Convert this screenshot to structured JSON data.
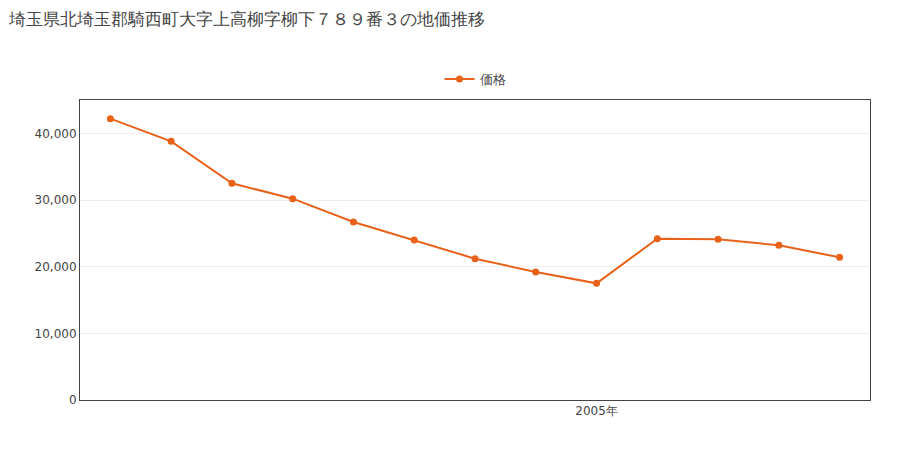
{
  "chart_data": {
    "type": "line",
    "title": "埼玉県北埼玉郡騎西町大字上高柳字柳下７８９番３の地価推移",
    "x": [
      1997,
      1998,
      1999,
      2000,
      2001,
      2002,
      2003,
      2004,
      2005,
      2006,
      2007,
      2008,
      2009
    ],
    "series": [
      {
        "name": "価格",
        "color": "#E8621A",
        "marker": "circle",
        "values": [
          42200,
          38800,
          32500,
          30200,
          26700,
          24000,
          21200,
          19200,
          17500,
          24200,
          24100,
          23200,
          21400
        ]
      }
    ],
    "xlim": [
      1996.5,
      2009.5
    ],
    "xticks": [
      {
        "value": 2005,
        "label": "2005年"
      }
    ],
    "ylim": [
      0,
      45000
    ],
    "yticks": [
      0,
      {
        "value": 10000,
        "label": "10,000"
      },
      {
        "value": 20000,
        "label": "20,000"
      },
      {
        "value": 30000,
        "label": "30,000"
      },
      {
        "value": 40000,
        "label": "40,000"
      }
    ],
    "grid": true,
    "legend": "top"
  }
}
